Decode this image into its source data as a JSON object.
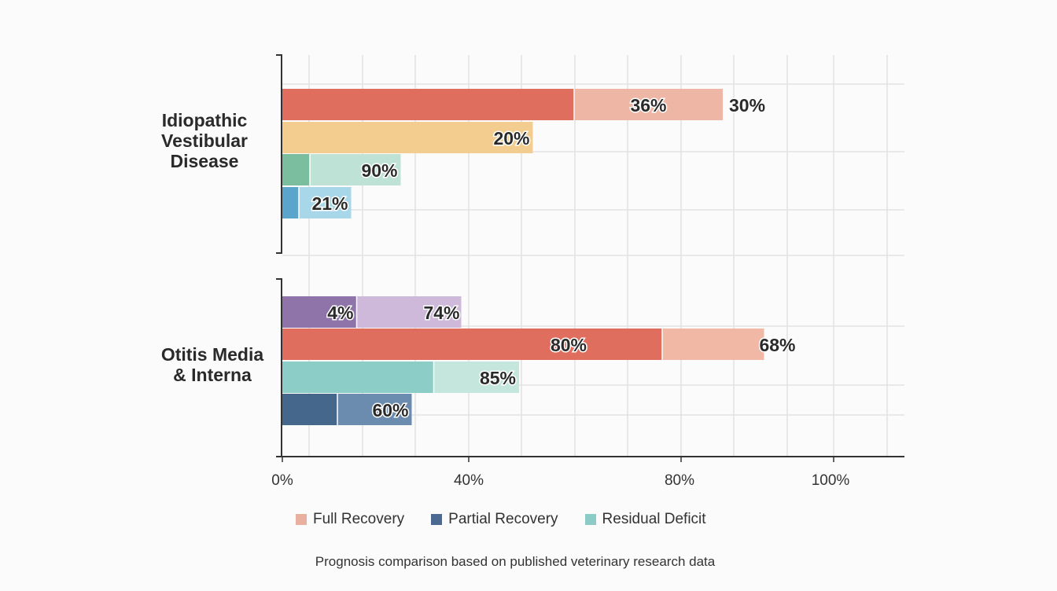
{
  "chart_data": {
    "type": "bar",
    "orientation": "horizontal",
    "stacked": true,
    "categories": [
      "Idiopathic\nVestibular\nDisease",
      "Otitis Media\n& Interna"
    ],
    "x_ticks": [
      "0%",
      "40%",
      "80%",
      "100%"
    ],
    "grid": true,
    "legend_position": "bottom",
    "legend": [
      {
        "label": "Full Recovery",
        "color": "#e8b09f"
      },
      {
        "label": "Partial Recovery",
        "color": "#4a6a91"
      },
      {
        "label": "Residual Deficit",
        "color": "#8ccbc6"
      }
    ],
    "groups": [
      {
        "category": "Idiopathic Vestibular Disease",
        "bars": [
          {
            "dark": 0.53,
            "light": 0.8,
            "dark_color": "#e06e5e",
            "light_color": "#eeb6a4",
            "labels": [
              "36%",
              "30%"
            ]
          },
          {
            "dark": 0.455,
            "light": 0.455,
            "dark_color": "#f3cd8f",
            "light_color": "#f3cd8f",
            "labels": [
              "20%"
            ]
          },
          {
            "dark": 0.05,
            "light": 0.215,
            "dark_color": "#7bbd9f",
            "light_color": "#bfe2d6",
            "labels": [
              "90%"
            ]
          },
          {
            "dark": 0.03,
            "light": 0.125,
            "dark_color": "#5ba4cc",
            "light_color": "#a9d7ea",
            "labels": [
              "21%"
            ]
          }
        ]
      },
      {
        "category": "Otitis Media & Interna",
        "bars": [
          {
            "dark": 0.135,
            "light": 0.325,
            "dark_color": "#8f74aa",
            "light_color": "#ceb9db",
            "labels": [
              "4%",
              "74%"
            ]
          },
          {
            "dark": 0.69,
            "light": 0.875,
            "dark_color": "#e06e5e",
            "light_color": "#f0b8a5",
            "labels": [
              "80%",
              "68%"
            ]
          },
          {
            "dark": 0.275,
            "light": 0.43,
            "dark_color": "#8ccdc8",
            "light_color": "#c5e6dc",
            "labels": [
              "85%"
            ]
          },
          {
            "dark": 0.1,
            "light": 0.235,
            "dark_color": "#46678c",
            "light_color": "#6b8cae",
            "labels": [
              "60%"
            ]
          }
        ]
      }
    ]
  },
  "caption": "Prognosis comparison based on published veterinary research data"
}
